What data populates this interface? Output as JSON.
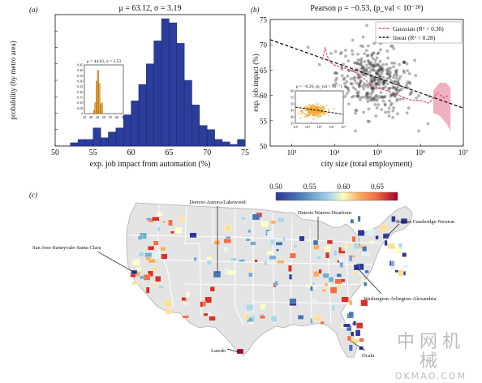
{
  "colors": {
    "bar_blue": "#2c3e9c",
    "bar_orange": "#f0a830",
    "scatter": "#2b2b2b",
    "gaussian_line": "#e05070",
    "linear_line": "#111111",
    "map_land": "#e4e4e4",
    "map_border": "#ffffff"
  },
  "chart_data": [
    {
      "id": "a",
      "type": "bar",
      "panel_label": "(a)",
      "title": "μ = 63.12, σ = 3.19",
      "xlabel": "exp. job impact from automation (%)",
      "ylabel": "probability (by metro area)",
      "xlim": [
        50,
        75
      ],
      "ylim": [
        0,
        0.16
      ],
      "xticks": [
        50,
        55,
        60,
        65,
        70,
        75
      ],
      "yticks": [
        0,
        0.02,
        0.04,
        0.06,
        0.08,
        0.1,
        0.12,
        0.14,
        0.16
      ],
      "bin_width": 1,
      "bin_starts": [
        52,
        53,
        54,
        55,
        56,
        57,
        58,
        59,
        60,
        61,
        62,
        63,
        64,
        65,
        66,
        67,
        68,
        69,
        70,
        71,
        72,
        73,
        74
      ],
      "values": [
        0.004,
        0.008,
        0.008,
        0.022,
        0.01,
        0.017,
        0.022,
        0.038,
        0.055,
        0.075,
        0.1,
        0.128,
        0.155,
        0.15,
        0.125,
        0.08,
        0.05,
        0.025,
        0.02,
        0.008,
        0.005,
        0.002,
        0.008
      ],
      "inset": {
        "type": "bar",
        "title": "μ = 44.63, σ = 2.53",
        "xlim": [
          35,
          65
        ],
        "ylim": [
          0,
          0.45
        ],
        "xticks": [
          35,
          40,
          45,
          50,
          55,
          60,
          65
        ],
        "yticks": [
          0,
          0.05,
          0.1,
          0.15,
          0.2,
          0.25,
          0.3,
          0.35,
          0.4,
          0.45
        ],
        "ytick_labels": [
          "0",
          "0.05",
          "0.10",
          "0.15",
          "0.20",
          "0.25",
          "0.30",
          "0.35",
          "0.40",
          "0.45"
        ],
        "bin_starts": [
          42,
          43,
          44,
          45,
          46,
          47,
          48
        ],
        "values": [
          0.03,
          0.1,
          0.3,
          0.4,
          0.28,
          0.08,
          0.1
        ]
      }
    },
    {
      "id": "b",
      "type": "scatter",
      "panel_label": "(b)",
      "title": "Pearson ρ = −0.53, (p_val < 10⁻²⁸)",
      "xlabel": "city size (total employment)",
      "ylabel": "exp. job impact (%)",
      "xscale": "log",
      "xlim_log10": [
        2.5,
        7
      ],
      "ylim": [
        50,
        75
      ],
      "xticks_log10": [
        3,
        4,
        5,
        6,
        7
      ],
      "xtick_labels": [
        "10³",
        "10⁴",
        "10⁵",
        "10⁶",
        "10⁷"
      ],
      "yticks": [
        50,
        55,
        60,
        65,
        70,
        75
      ],
      "legend": {
        "placement": "top-right",
        "entries": [
          "Gaussian (R² = 0.30)",
          "linear (R² = 0.28)"
        ]
      },
      "linear_fit_log10": [
        [
          2.5,
          71.0
        ],
        [
          7.0,
          57.5
        ]
      ],
      "gaussian_curve_log10": [
        [
          3.72,
          67.0
        ],
        [
          3.78,
          69.5
        ],
        [
          3.82,
          68.0
        ],
        [
          3.9,
          66.5
        ],
        [
          4.0,
          66.0
        ],
        [
          4.2,
          65.5
        ],
        [
          4.5,
          64.5
        ],
        [
          4.8,
          62.5
        ],
        [
          5.0,
          61.5
        ],
        [
          5.2,
          61.0
        ],
        [
          5.5,
          60.0
        ],
        [
          5.8,
          59.0
        ],
        [
          6.0,
          59.0
        ],
        [
          6.2,
          58.5
        ],
        [
          6.4,
          60.5
        ],
        [
          6.55,
          59.5
        ],
        [
          6.65,
          60.0
        ]
      ],
      "gaussian_band_log10": [
        [
          6.3,
          56.5,
          61.0
        ],
        [
          6.45,
          56.0,
          62.5
        ],
        [
          6.6,
          54.5,
          62.5
        ],
        [
          6.7,
          53.0,
          61.5
        ]
      ],
      "cloud": {
        "x_center_log10": 4.95,
        "x_spread_log10": 0.45,
        "y_center": 63.0,
        "y_spread": 3.2,
        "count": 380
      },
      "inset": {
        "title": "ρ = −0.26, (p_val < 10⁻⁷)",
        "ylim": [
          35,
          60
        ],
        "yticks": [
          35,
          40,
          45,
          50,
          55,
          60
        ],
        "xlim_log10": [
          3,
          7
        ],
        "xticks_log10": [
          3,
          4,
          5,
          6,
          7
        ],
        "xtick_labels": [
          "10³",
          "10⁴",
          "10⁵",
          "10⁶",
          "10⁷"
        ],
        "cloud": {
          "x_center_log10": 4.6,
          "x_spread_log10": 0.5,
          "y_center": 44.5,
          "y_spread": 2.2,
          "count": 300
        },
        "linear_fit_log10": [
          [
            3.0,
            47.5
          ],
          [
            7.0,
            42.0
          ]
        ]
      }
    },
    {
      "id": "c",
      "type": "heatmap",
      "panel_label": "(c)",
      "colorbar": {
        "min": 0.5,
        "max": 0.68,
        "ticks": [
          0.5,
          0.55,
          0.6,
          0.65
        ],
        "tick_labels": [
          "0.50",
          "0.55",
          "0.60",
          "0.65"
        ]
      },
      "city_labels": [
        "Denver-Aurora-Lakewood",
        "Detroit-Warren-Dearborn",
        "Boston-Cambridge-Newton",
        "San Jose-Sunnyvale-Santa Clara",
        "Washington-Arlington-Alexandria",
        "Laredo",
        "Ocala"
      ]
    }
  ],
  "watermark": {
    "zh": "中网机械",
    "en": "OKMAO.COM"
  }
}
